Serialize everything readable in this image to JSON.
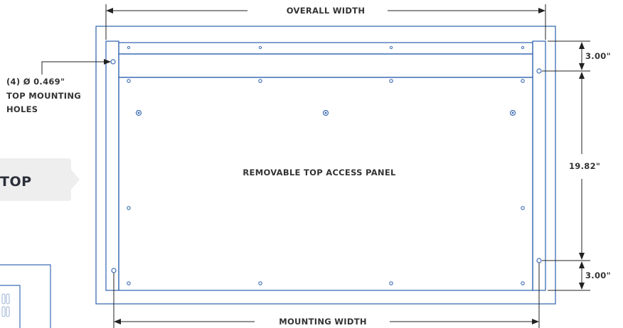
{
  "colors": {
    "outline": "#3c6cb3",
    "dimension": "#222222",
    "text": "#333333",
    "tab_fill": "#eeeeee",
    "tab_text": "#2b2f3a"
  },
  "labels": {
    "overall_width": "OVERALL WIDTH",
    "mounting_width": "MOUNTING WIDTH",
    "top_dim": "3.00\"",
    "middle_dim": "19.82\"",
    "bottom_dim": "3.00\"",
    "panel": "REMOVABLE TOP ACCESS PANEL",
    "hole_callout_line1": "(4) Ø 0.469\"",
    "hole_callout_line2": "TOP MOUNTING",
    "hole_callout_line3": "HOLES",
    "view_tab": "TOP"
  }
}
